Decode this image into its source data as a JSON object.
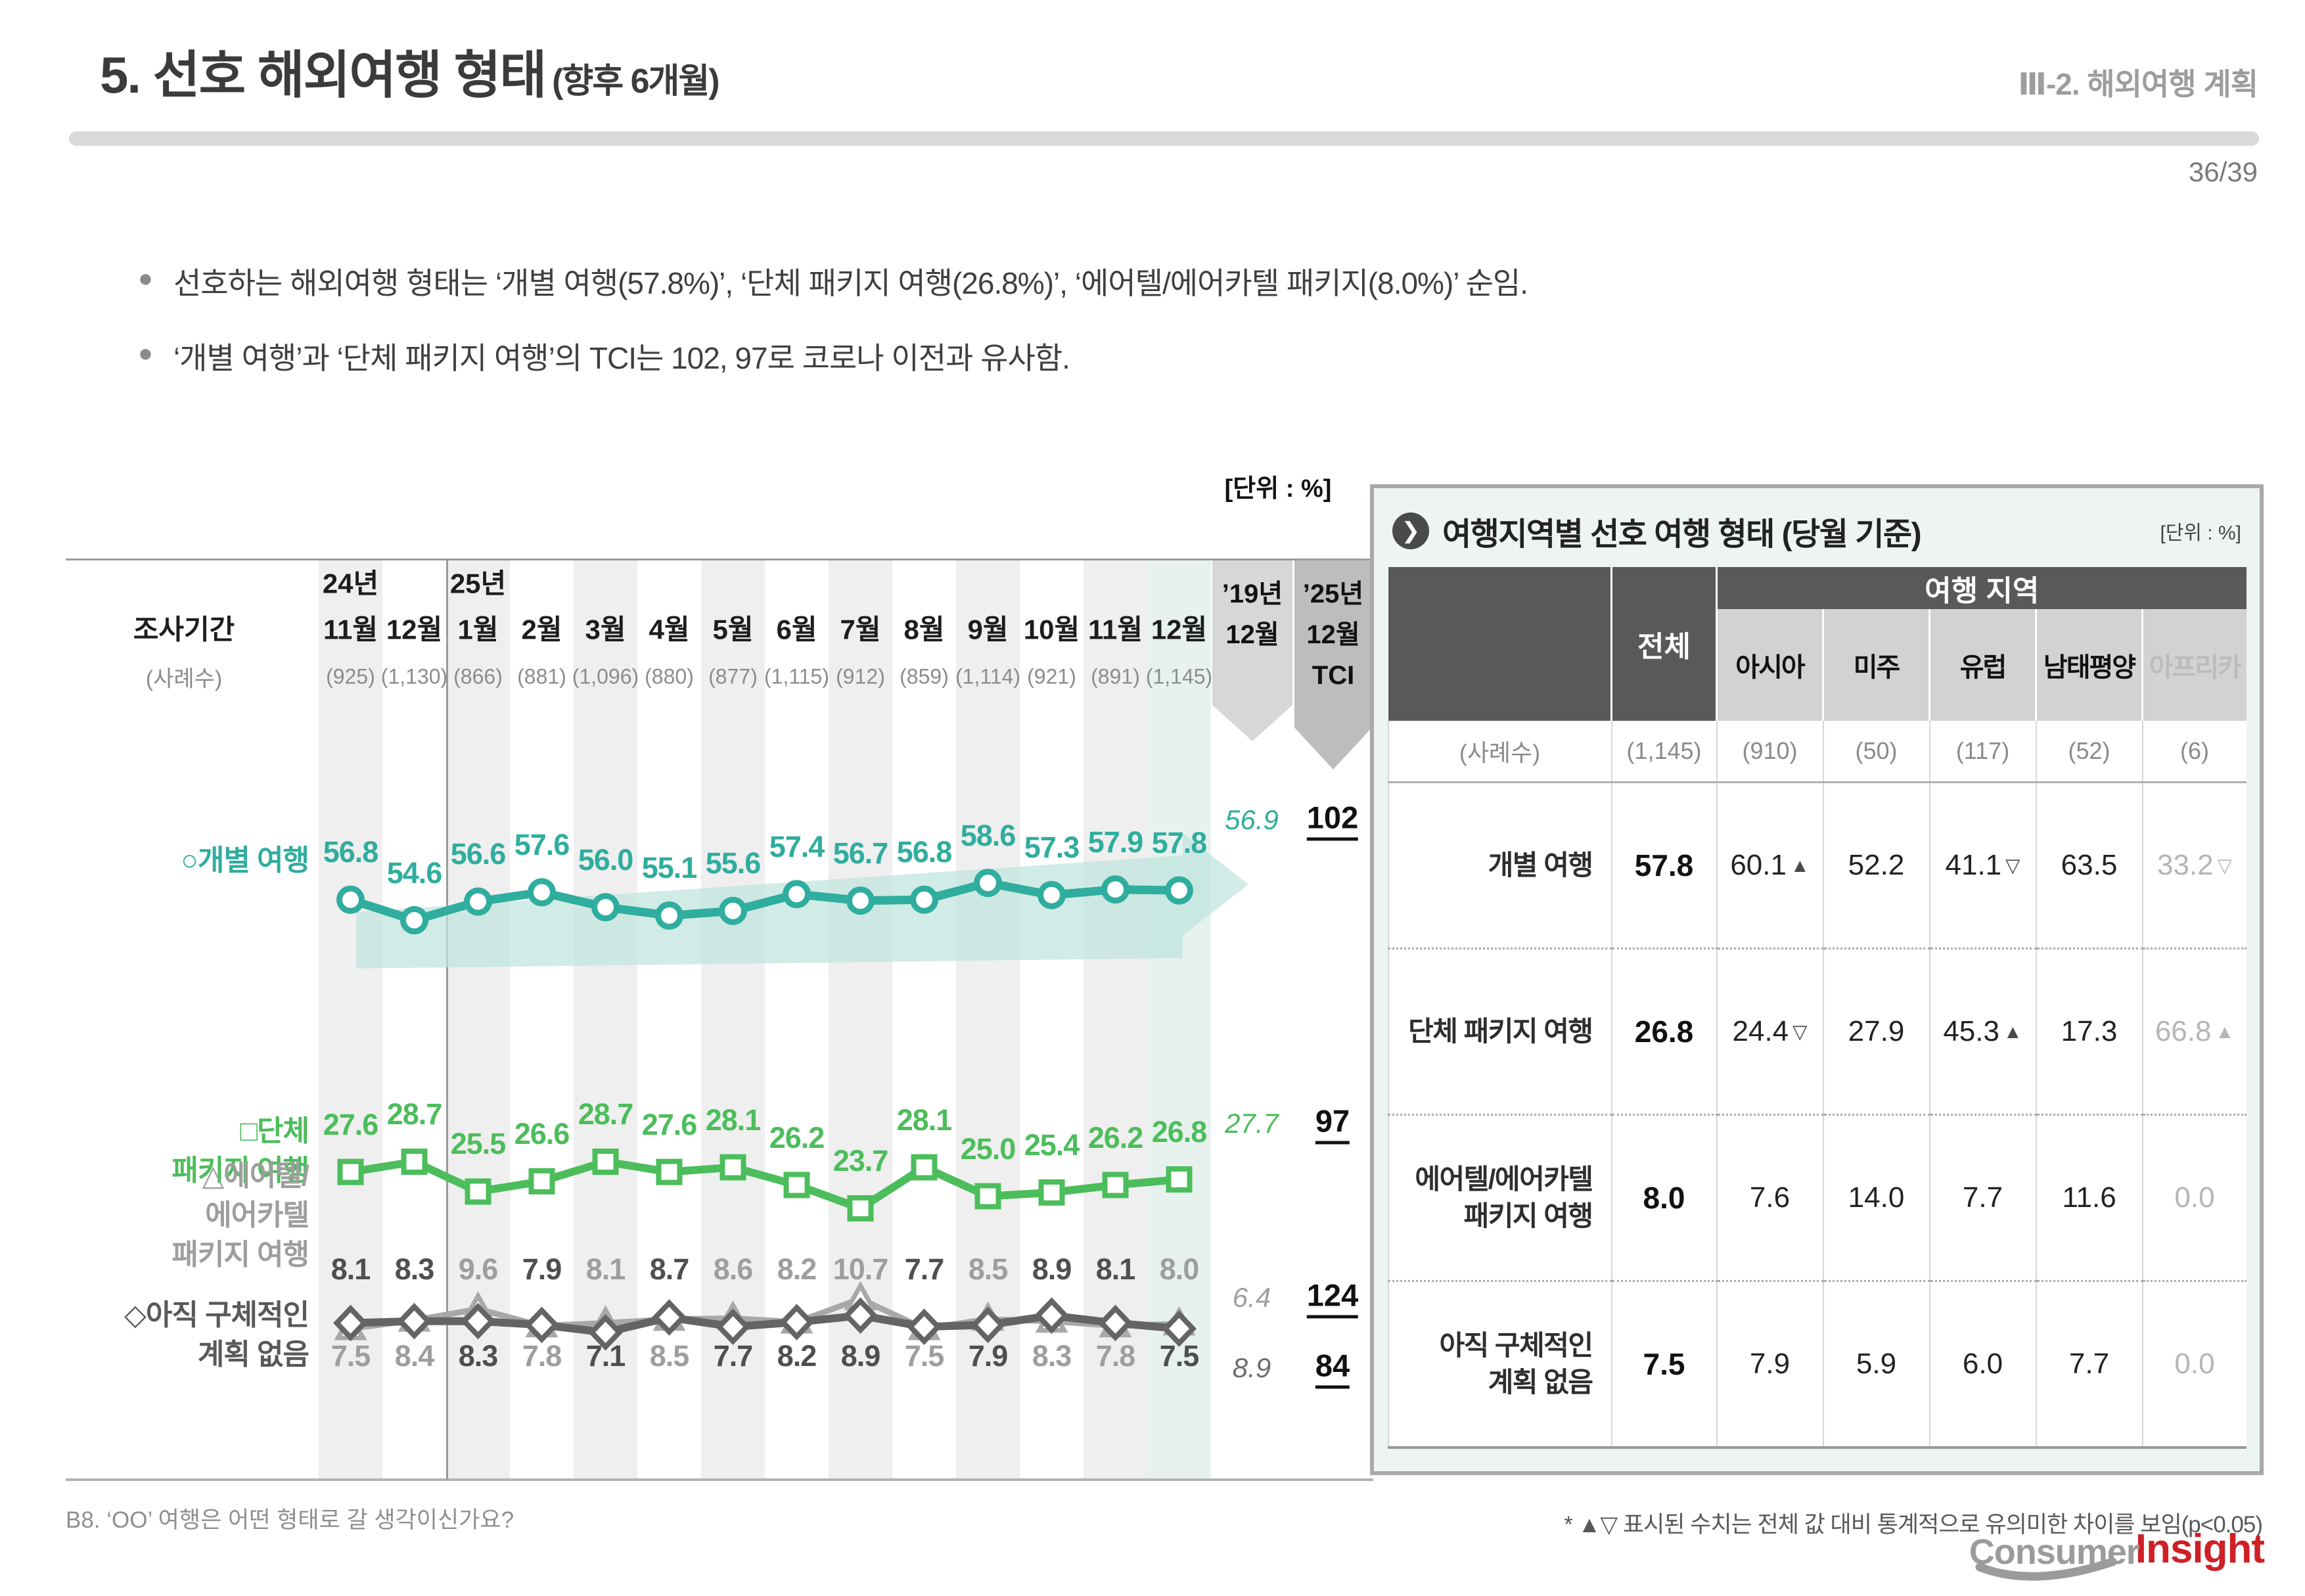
{
  "header": {
    "title": "5. 선호 해외여행 형태",
    "title_suffix": "(향후 6개월)",
    "section": "Ⅲ-2. 해외여행 계획",
    "page": "36/39"
  },
  "bullets": [
    "선호하는 해외여행 형태는 ‘개별 여행(57.8%)’, ‘단체 패키지 여행(26.8%)’, ‘에어텔/에어카텔 패키지(8.0%)’ 순임.",
    "‘개별 여행’과 ‘단체 패키지 여행’의 TCI는 102, 97로 코로나 이전과 유사함."
  ],
  "chart_data": {
    "type": "line",
    "unit": "[단위 : %]",
    "col_header": "조사기간",
    "col_subheader": "(사례수)",
    "months": [
      {
        "year": "24년",
        "label": "11월",
        "n": "(925)"
      },
      {
        "label": "12월",
        "n": "(1,130)"
      },
      {
        "year": "25년",
        "label": "1월",
        "n": "(866)"
      },
      {
        "label": "2월",
        "n": "(881)"
      },
      {
        "label": "3월",
        "n": "(1,096)"
      },
      {
        "label": "4월",
        "n": "(880)"
      },
      {
        "label": "5월",
        "n": "(877)"
      },
      {
        "label": "6월",
        "n": "(1,115)"
      },
      {
        "label": "7월",
        "n": "(912)"
      },
      {
        "label": "8월",
        "n": "(859)"
      },
      {
        "label": "9월",
        "n": "(1,114)"
      },
      {
        "label": "10월",
        "n": "(921)"
      },
      {
        "label": "11월",
        "n": "(891)"
      },
      {
        "label": "12월",
        "n": "(1,145)"
      }
    ],
    "ref_col": {
      "lines": [
        "’19년",
        "12월"
      ]
    },
    "tci_col": {
      "lines": [
        "’25년",
        "12월",
        "TCI"
      ]
    },
    "series": [
      {
        "id": "individual",
        "legend": "○개별 여행",
        "marker": "circle",
        "color": "#2fad9e",
        "values": [
          56.8,
          54.6,
          56.6,
          57.6,
          56.0,
          55.1,
          55.6,
          57.4,
          56.7,
          56.8,
          58.6,
          57.3,
          57.9,
          57.8
        ],
        "ref": "56.9",
        "tci": "102"
      },
      {
        "id": "group-package",
        "legend": "□단체\n패키지 여행",
        "marker": "square",
        "color": "#4cbd5b",
        "values": [
          27.6,
          28.7,
          25.5,
          26.6,
          28.7,
          27.6,
          28.1,
          26.2,
          23.7,
          28.1,
          25.0,
          25.4,
          26.2,
          26.8
        ],
        "ref": "27.7",
        "tci": "97"
      },
      {
        "id": "airtel",
        "legend": "△에어텔/\n에어카텔\n패키지 여행",
        "marker": "triangle",
        "color": "#9e9e9e",
        "values": [
          7.5,
          8.4,
          9.6,
          7.8,
          8.1,
          8.5,
          8.6,
          8.2,
          10.7,
          7.5,
          8.5,
          8.3,
          7.8,
          8.0
        ],
        "ref": "6.4",
        "tci": "124",
        "label_side": [
          "bottom",
          "bottom",
          "top",
          "bottom",
          "top",
          "bottom",
          "top",
          "top",
          "top",
          "bottom",
          "top",
          "bottom",
          "bottom",
          "top"
        ]
      },
      {
        "id": "no-plan",
        "legend": "◇아직 구체적인\n계획 없음",
        "marker": "diamond",
        "color": "#595959",
        "values": [
          8.1,
          8.3,
          8.3,
          7.9,
          7.1,
          8.7,
          7.7,
          8.2,
          8.9,
          7.7,
          7.9,
          8.9,
          8.1,
          7.5
        ],
        "ref": "8.9",
        "tci": "84"
      }
    ]
  },
  "table": {
    "title": "여행지역별 선호 여행 형태 (당월 기준)",
    "unit": "[단위 : %]",
    "group_header": "여행 지역",
    "total_header": "전체",
    "region_headers": [
      "아시아",
      "미주",
      "유럽",
      "남태평양",
      "아프리카"
    ],
    "sample_label": "(사례수)",
    "sample_values": [
      "(1,145)",
      "(910)",
      "(50)",
      "(117)",
      "(52)",
      "(6)"
    ],
    "rows": [
      {
        "label": "개별 여행",
        "total": "57.8",
        "cells": [
          {
            "v": "60.1",
            "mark": "▲"
          },
          {
            "v": "52.2",
            "mark": ""
          },
          {
            "v": "41.1",
            "mark": "▽"
          },
          {
            "v": "63.5",
            "mark": ""
          },
          {
            "v": "33.2",
            "mark": "▽",
            "muted": true
          }
        ]
      },
      {
        "label": "단체 패키지 여행",
        "total": "26.8",
        "cells": [
          {
            "v": "24.4",
            "mark": "▽"
          },
          {
            "v": "27.9",
            "mark": ""
          },
          {
            "v": "45.3",
            "mark": "▲"
          },
          {
            "v": "17.3",
            "mark": ""
          },
          {
            "v": "66.8",
            "mark": "▲",
            "muted": true
          }
        ]
      },
      {
        "label": "에어텔/에어카텔\n패키지 여행",
        "total": "8.0",
        "cells": [
          {
            "v": "7.6",
            "mark": ""
          },
          {
            "v": "14.0",
            "mark": ""
          },
          {
            "v": "7.7",
            "mark": ""
          },
          {
            "v": "11.6",
            "mark": ""
          },
          {
            "v": "0.0",
            "mark": "",
            "muted": true
          }
        ]
      },
      {
        "label": "아직 구체적인\n계획 없음",
        "total": "7.5",
        "cells": [
          {
            "v": "7.9",
            "mark": ""
          },
          {
            "v": "5.9",
            "mark": ""
          },
          {
            "v": "6.0",
            "mark": ""
          },
          {
            "v": "7.7",
            "mark": ""
          },
          {
            "v": "0.0",
            "mark": "",
            "muted": true
          }
        ]
      }
    ]
  },
  "footnotes": {
    "left": "B8. ‘OO’ 여행은 어떤 형태로 갈 생각이신가요?",
    "right": "* ▲▽ 표시된 수치는 전체 값 대비 통계적으로 유의미한 차이를 보임(p<0.05)"
  },
  "logo": {
    "part1": "Consumer",
    "part2": "Insight"
  }
}
